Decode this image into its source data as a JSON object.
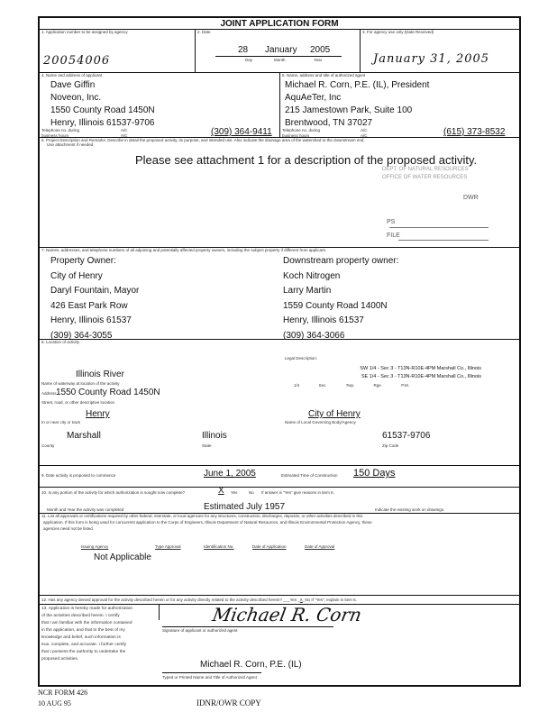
{
  "title": "JOINT APPLICATION FORM",
  "s1": {
    "label": "1. Application number to be assigned by agency",
    "value": "20054006"
  },
  "s2": {
    "label": "2. Date",
    "day": "28",
    "month": "January",
    "year": "2005",
    "day_l": "Day",
    "month_l": "Month",
    "year_l": "Year"
  },
  "s3": {
    "label": "3. For agency use only (Date Received)",
    "value": "January 31, 2005"
  },
  "s4": {
    "label": "4. Name and address of applicant",
    "lines": [
      "Dave Giffin",
      "Noveon, Inc.",
      "1550 County Road 1450N",
      "Henry, Illinois  61537-9706"
    ],
    "tel_evening": "Telephone no. during",
    "business": "business hours",
    "ac1": "A/C",
    "ac2": "A/C",
    "phone": "(309) 364-9411"
  },
  "s5": {
    "label": "5. Name, address and title of authorized agent",
    "lines": [
      "Michael R. Corn, P.E. (IL), President",
      "AquAeTer, Inc",
      "215 Jamestown Park, Suite 100",
      "Brentwood, TN 37027"
    ],
    "tel": "Telephone no. during",
    "business": "business hours",
    "ac1": "A/C",
    "ac2": "A/C",
    "phone": "(615) 373-8532"
  },
  "s6": {
    "label": "6. Project Description and Remarks: Describe in detail the proposed activity, its purpose, and intended use. Also indicate the drainage area of the watershed to the downstream end.",
    "label2": "Use attachment if needed.",
    "text": "Please see attachment 1 for a description of the proposed activity.",
    "stamp": [
      "RECEIVED",
      "DEPT. OF NATURAL RESOURCES",
      "OFFICE OF WATER RESOURCES",
      "DWR",
      "PS",
      "FILE"
    ]
  },
  "s7": {
    "label": "7. Names, addresses, and telephone numbers of all adjoining and potentially affected property owners, including the subject property if different from applicant.",
    "left": [
      "Property Owner:",
      "City of Henry",
      "Daryl Fountain, Mayor",
      "426 East Park Row",
      "Henry, Illinois 61537",
      "(309) 364-3055"
    ],
    "right": [
      "Downstream property owner:",
      "Koch Nitrogen",
      "Larry Martin",
      "1559 County Road 1400N",
      "Henry, Illinois 61537",
      "(309) 364-3066"
    ]
  },
  "s8": {
    "label": "8. Location of activity",
    "legal_label": "Legal Description:",
    "legal": [
      "SW 1/4 - Sec 3 - T13N-R10E-4PM Marshall Co., Illinois",
      "SE 1/4 - Sec 3 - T13N-R10E-4PM Marshall Co., Illinois"
    ],
    "legal_cols": [
      "1/4",
      "Sec.",
      "Twp.",
      "Rge.",
      "P.M."
    ],
    "waterway": "Illinois River",
    "waterway_l": "Name of waterway at location of the activity",
    "address_l": "Address",
    "address": "1550 County Road 1450N",
    "street_l": "Street, road, or other descriptive location",
    "town": "Henry",
    "town_l": "In or near city or town",
    "district": "City of Henry",
    "district_l": "Name of Local Governing Body/Agency",
    "county": "Marshall",
    "county_l": "County",
    "state": "Illinois",
    "state_l": "State",
    "zip": "61537-9706",
    "zip_l": "Zip Code"
  },
  "s9": {
    "label": "9. Date activity is proposed to commence",
    "date": "June 1, 2005",
    "dur_l": "Estimated Time of Construction",
    "dur": "150 Days"
  },
  "s10": {
    "label": "10. Is any portion of the activity for which authorization is sought now complete?",
    "mark": "X",
    "yes": "Yes",
    "no": "No",
    "note": "If answer is \"Yes\" give reasons in item 6.",
    "month_l": "Month and Year the activity was completed",
    "completed": "Estimated July 1957",
    "drawings": "Indicate the existing work on drawings."
  },
  "s11": {
    "label": "11. List all approvals or certifications required by other federal, interstate, or local agencies for any structures, construction, discharges, deposits, or other activities described in this",
    "label2": "application. If this form is being used for concurrent application to the Corps of Engineers, Illinois Department of Natural Resources, and Illinois Environmental Protection Agency, these",
    "label3": "agencies need not be listed.",
    "cols": [
      "Issuing Agency",
      "Type Approval",
      "Identification No.",
      "Date of Application",
      "Date of Approval"
    ],
    "value": "Not Applicable"
  },
  "s12": {
    "label": "12. Has any agency denied approval for the activity described herein or for any activity directly related to the activity described herein?",
    "yes": "Yes",
    "mark": "X",
    "no": "No",
    "note": "If \"Yes\", explain in item 6."
  },
  "s13": {
    "text": [
      "13. Application is hereby made for authorization",
      "of the activities described herein. I certify",
      "that I am familiar with the information contained",
      "in the application, and that to the best of my",
      "knowledge and belief, such information is",
      "true, complete, and accurate. I further certify",
      "that I possess the authority to undertake the",
      "proposed activities."
    ],
    "sig_l": "Signature of applicant or authorized agent",
    "signature": "Michael R. Corn",
    "name": "Michael R. Corn, P.E. (IL)",
    "name_l": "Typed or Printed Name and Title of Authorized Agent"
  },
  "footer": {
    "form": "NCR FORM 426",
    "date": "10 AUG 95",
    "copy": "IDNR/OWR COPY"
  }
}
